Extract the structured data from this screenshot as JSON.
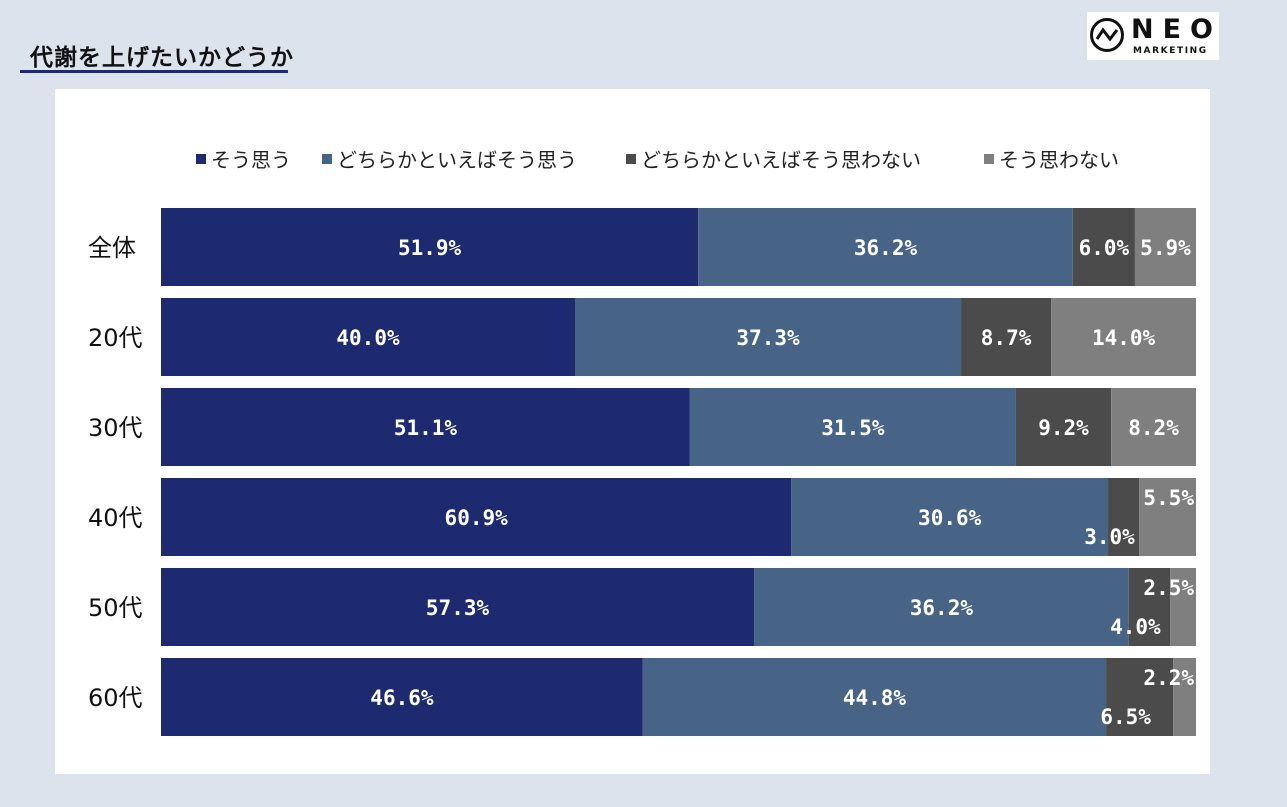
{
  "title": "代謝を上げたいかどうか",
  "logo": {
    "word": "NEO",
    "sub": "MARKETING"
  },
  "colors": {
    "background": "#dde3ec",
    "panel": "#ffffff",
    "series": [
      "#1e2a70",
      "#476487",
      "#4b4b4b",
      "#7f7f7f"
    ]
  },
  "chart_data": {
    "type": "bar",
    "orientation": "horizontal",
    "stacked": true,
    "normalized": true,
    "xlim": [
      0,
      100
    ],
    "legend_position": "top",
    "grid": false,
    "categories": [
      "全体",
      "20代",
      "30代",
      "40代",
      "50代",
      "60代"
    ],
    "series": [
      {
        "name": "そう思う",
        "values": [
          51.9,
          40.0,
          51.1,
          60.9,
          57.3,
          46.6
        ]
      },
      {
        "name": "どちらかといえばそう思う",
        "values": [
          36.2,
          37.3,
          31.5,
          30.6,
          36.2,
          44.8
        ]
      },
      {
        "name": "どちらかといえばそう思わない",
        "values": [
          6.0,
          8.7,
          9.2,
          3.0,
          4.0,
          6.5
        ]
      },
      {
        "name": "そう思わない",
        "values": [
          5.9,
          14.0,
          8.2,
          5.5,
          2.5,
          2.2
        ]
      }
    ],
    "value_labels": [
      [
        "51.9%",
        "36.2%",
        "6.0%",
        "5.9%"
      ],
      [
        "40.0%",
        "37.3%",
        "8.7%",
        "14.0%"
      ],
      [
        "51.1%",
        "31.5%",
        "9.2%",
        "8.2%"
      ],
      [
        "60.9%",
        "30.6%",
        "3.0%",
        "5.5%"
      ],
      [
        "57.3%",
        "36.2%",
        "4.0%",
        "2.5%"
      ],
      [
        "46.6%",
        "44.8%",
        "6.5%",
        "2.2%"
      ]
    ]
  }
}
